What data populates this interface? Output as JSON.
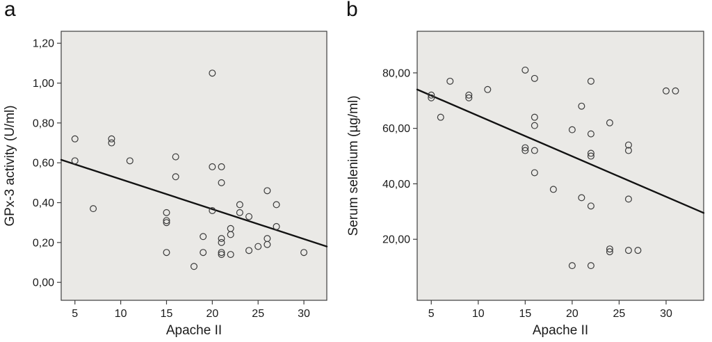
{
  "figure": {
    "background": "#ffffff",
    "description_labels": {
      "panel_a": "a",
      "panel_b": "b"
    }
  },
  "chart_data": [
    {
      "type": "scatter",
      "panel_label": "a",
      "title": "",
      "xlabel": "Apache II",
      "ylabel": "GPx-3 activity (U/ml)",
      "xlim": [
        3.5,
        32.5
      ],
      "ylim": [
        -0.09,
        1.26
      ],
      "grid": false,
      "legend_position": "none",
      "x_ticks": [
        {
          "value": 5,
          "label": "5"
        },
        {
          "value": 10,
          "label": "10"
        },
        {
          "value": 15,
          "label": "15"
        },
        {
          "value": 20,
          "label": "20"
        },
        {
          "value": 25,
          "label": "25"
        },
        {
          "value": 30,
          "label": "30"
        }
      ],
      "y_ticks": [
        {
          "value": 0.0,
          "label": "0,00"
        },
        {
          "value": 0.2,
          "label": "0,20"
        },
        {
          "value": 0.4,
          "label": "0,40"
        },
        {
          "value": 0.6,
          "label": "0,60"
        },
        {
          "value": 0.8,
          "label": "0,80"
        },
        {
          "value": 1.0,
          "label": "1,00"
        },
        {
          "value": 1.2,
          "label": "1,20"
        }
      ],
      "points": [
        [
          5,
          0.72
        ],
        [
          5,
          0.61
        ],
        [
          7,
          0.37
        ],
        [
          9,
          0.72
        ],
        [
          9,
          0.7
        ],
        [
          11,
          0.61
        ],
        [
          15,
          0.35
        ],
        [
          15,
          0.31
        ],
        [
          15,
          0.3
        ],
        [
          15,
          0.15
        ],
        [
          16,
          0.63
        ],
        [
          16,
          0.53
        ],
        [
          18,
          0.08
        ],
        [
          19,
          0.23
        ],
        [
          19,
          0.15
        ],
        [
          20,
          1.05
        ],
        [
          20,
          0.58
        ],
        [
          20,
          0.36
        ],
        [
          21,
          0.58
        ],
        [
          21,
          0.5
        ],
        [
          21,
          0.22
        ],
        [
          21,
          0.2
        ],
        [
          21,
          0.15
        ],
        [
          21,
          0.14
        ],
        [
          22,
          0.27
        ],
        [
          22,
          0.24
        ],
        [
          22,
          0.14
        ],
        [
          23,
          0.39
        ],
        [
          23,
          0.35
        ],
        [
          24,
          0.33
        ],
        [
          24,
          0.16
        ],
        [
          25,
          0.18
        ],
        [
          26,
          0.46
        ],
        [
          26,
          0.22
        ],
        [
          26,
          0.19
        ],
        [
          27,
          0.39
        ],
        [
          27,
          0.28
        ],
        [
          30,
          0.15
        ]
      ],
      "regression_line": {
        "x1": 3.5,
        "y1": 0.615,
        "x2": 32.5,
        "y2": 0.18
      },
      "colors": {
        "plot_bg": "#eae9e6",
        "frame": "#3c3c3c",
        "point": "#3a3a3a",
        "line": "#121212",
        "text": "#1a1a1a"
      }
    },
    {
      "type": "scatter",
      "panel_label": "b",
      "title": "",
      "xlabel": "Apache II",
      "ylabel": "Serum selenium (µg/ml)",
      "xlim": [
        3.5,
        34
      ],
      "ylim": [
        -2,
        95
      ],
      "grid": false,
      "legend_position": "none",
      "x_ticks": [
        {
          "value": 5,
          "label": "5"
        },
        {
          "value": 10,
          "label": "10"
        },
        {
          "value": 15,
          "label": "15"
        },
        {
          "value": 20,
          "label": "20"
        },
        {
          "value": 25,
          "label": "25"
        },
        {
          "value": 30,
          "label": "30"
        }
      ],
      "y_ticks": [
        {
          "value": 20,
          "label": "20,00"
        },
        {
          "value": 40,
          "label": "40,00"
        },
        {
          "value": 60,
          "label": "60,00"
        },
        {
          "value": 80,
          "label": "80,00"
        }
      ],
      "points": [
        [
          5,
          72
        ],
        [
          5,
          71
        ],
        [
          6,
          64
        ],
        [
          7,
          77
        ],
        [
          9,
          72
        ],
        [
          9,
          71
        ],
        [
          11,
          74
        ],
        [
          15,
          81
        ],
        [
          15,
          53
        ],
        [
          15,
          52
        ],
        [
          16,
          78
        ],
        [
          16,
          64
        ],
        [
          16,
          61
        ],
        [
          16,
          52
        ],
        [
          16,
          44
        ],
        [
          18,
          38
        ],
        [
          20,
          59.5
        ],
        [
          20,
          10.5
        ],
        [
          21,
          68
        ],
        [
          21,
          35
        ],
        [
          22,
          77
        ],
        [
          22,
          58
        ],
        [
          22,
          51
        ],
        [
          22,
          50
        ],
        [
          22,
          32
        ],
        [
          22,
          10.5
        ],
        [
          24,
          62
        ],
        [
          24,
          16.5
        ],
        [
          24,
          15.5
        ],
        [
          26,
          54
        ],
        [
          26,
          52
        ],
        [
          26,
          34.5
        ],
        [
          26,
          16
        ],
        [
          27,
          16
        ],
        [
          30,
          73.5
        ],
        [
          31,
          73.5
        ]
      ],
      "regression_line": {
        "x1": 3.5,
        "y1": 74,
        "x2": 34,
        "y2": 29.5
      },
      "colors": {
        "plot_bg": "#eae9e6",
        "frame": "#3c3c3c",
        "point": "#3a3a3a",
        "line": "#121212",
        "text": "#1a1a1a"
      }
    }
  ]
}
